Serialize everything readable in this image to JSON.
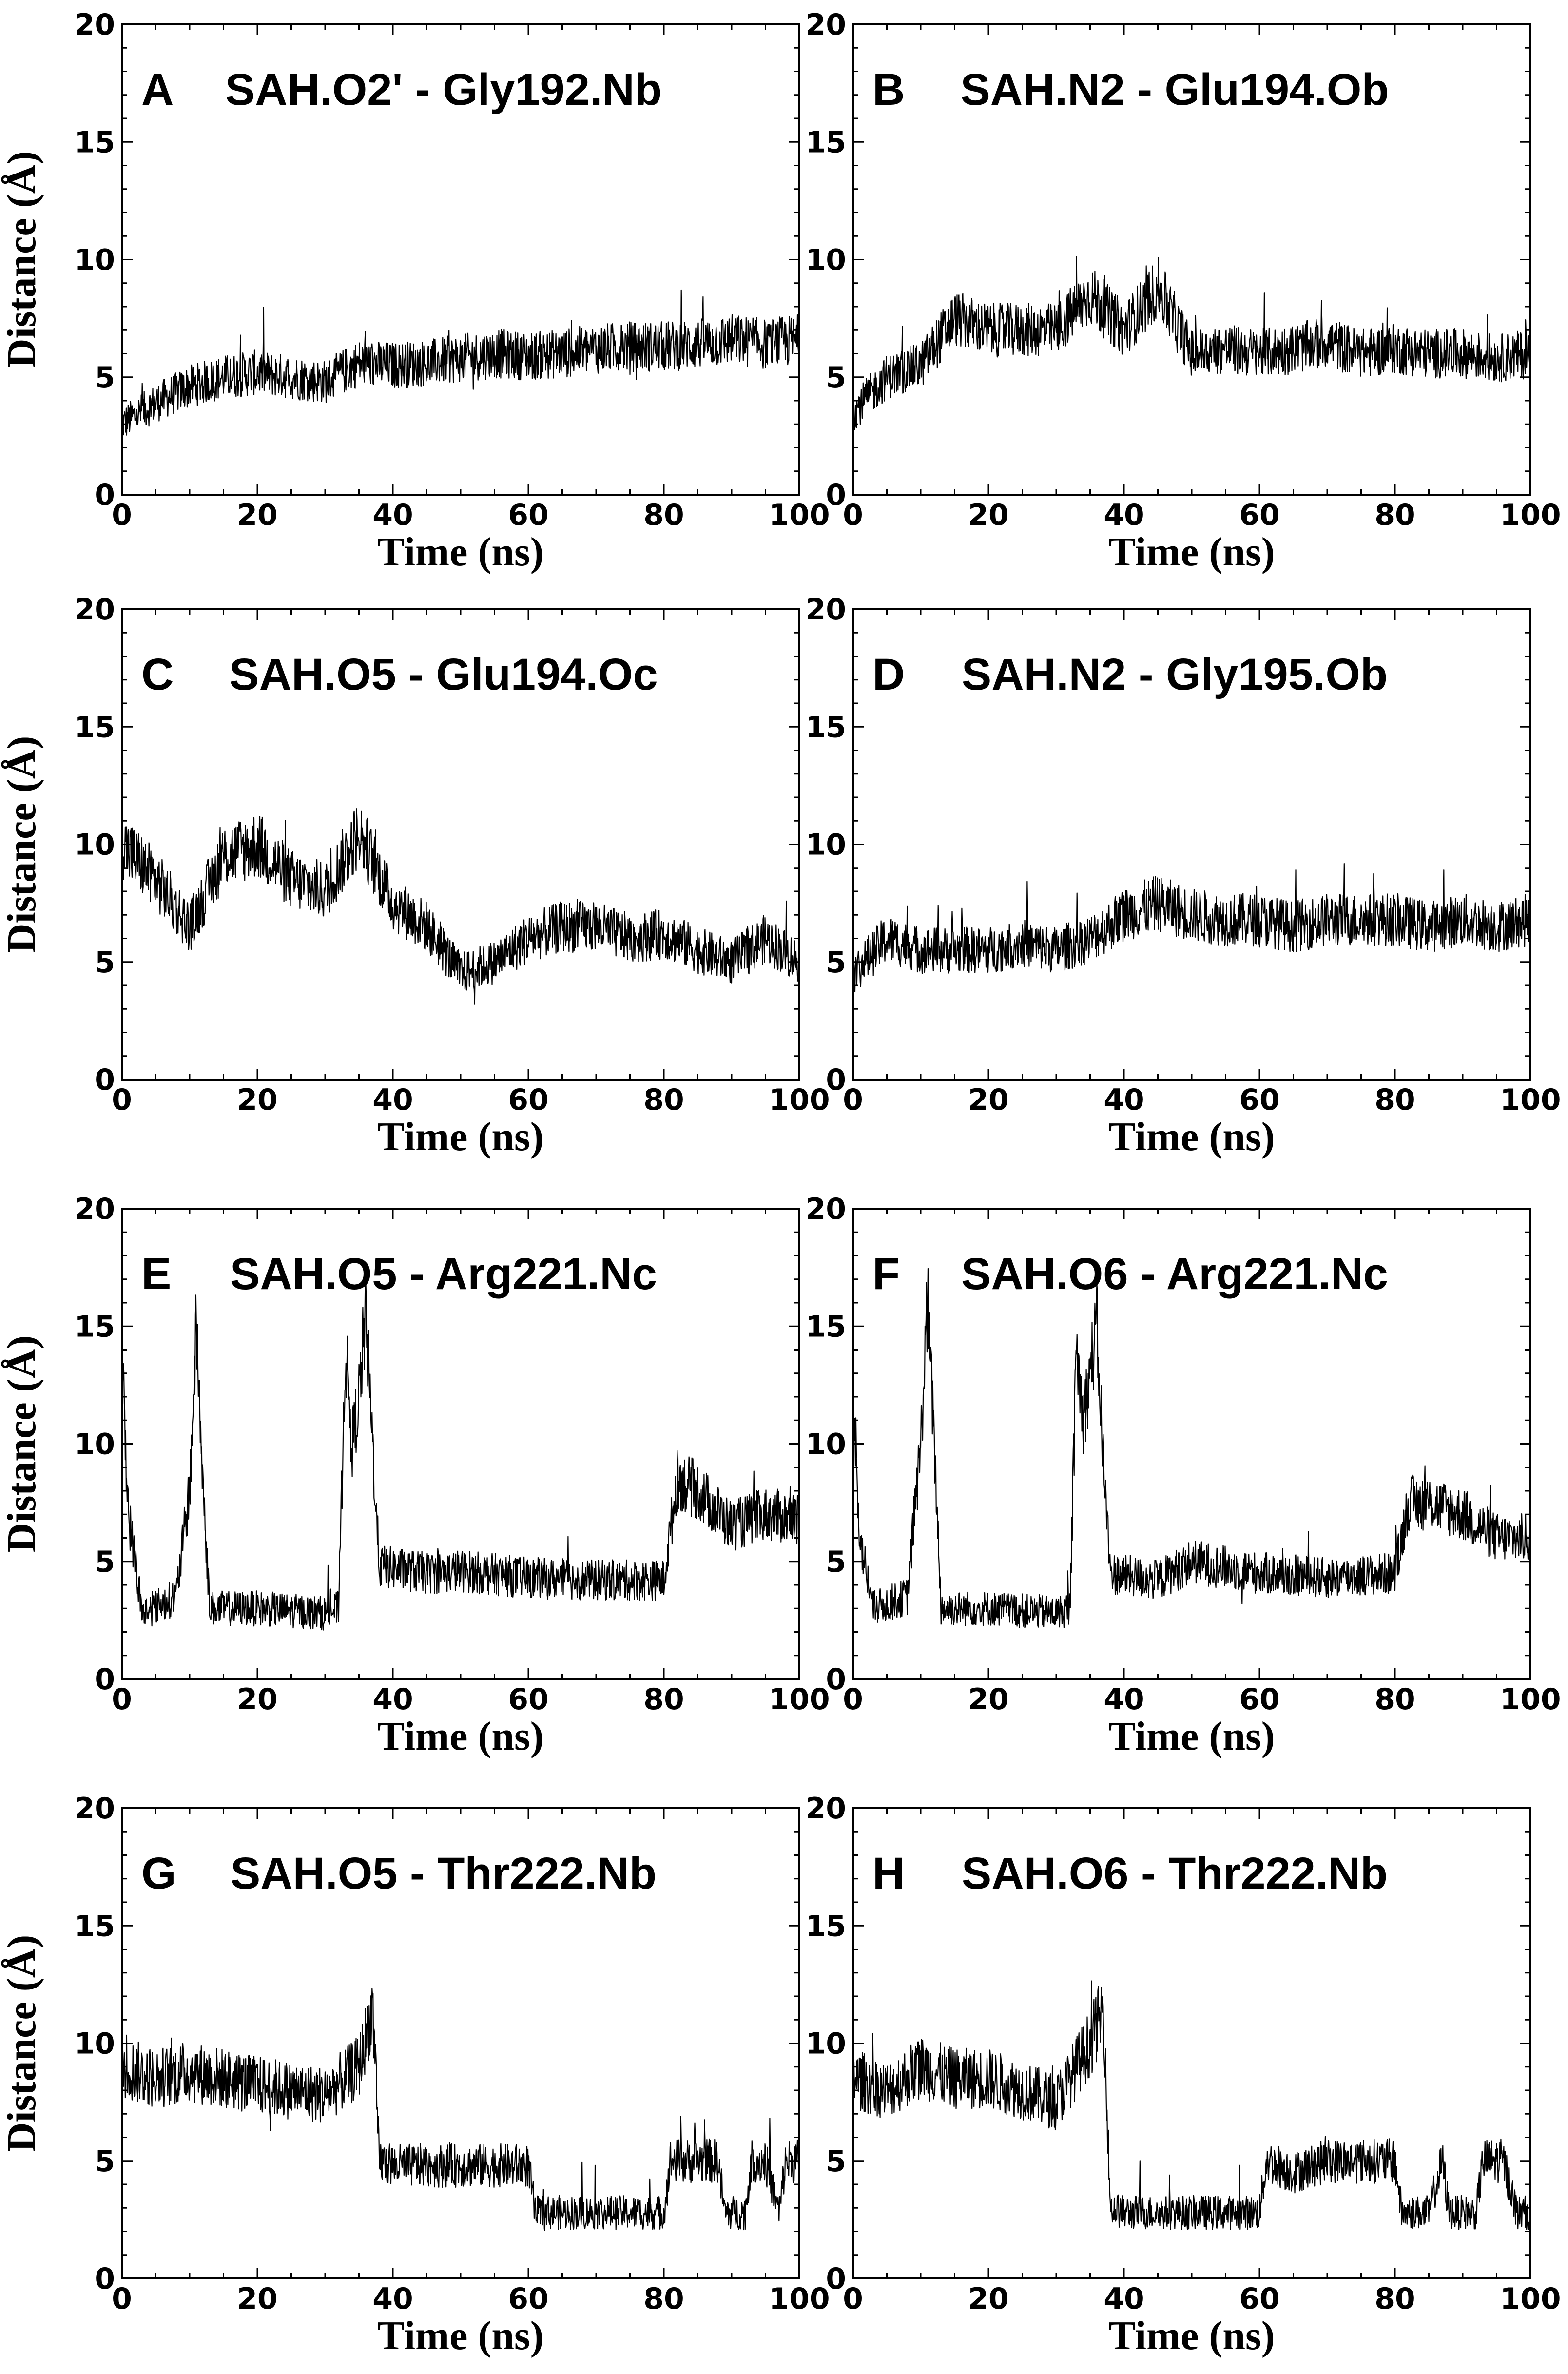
{
  "chart_data": [
    {
      "panel": "A",
      "type": "line",
      "title": "SAH.O2' - Gly192.Nb",
      "xlabel": "Time (ns)",
      "ylabel": "Distance (Å)",
      "xlim": [
        0,
        100
      ],
      "ylim": [
        0,
        20
      ],
      "xticks": [
        0,
        20,
        40,
        60,
        80,
        100
      ],
      "yticks": [
        0,
        5,
        10,
        15,
        20
      ],
      "series": [
        {
          "name": "distance",
          "x": [
            0,
            5,
            10,
            15,
            20,
            25,
            30,
            35,
            40,
            45,
            50,
            55,
            60,
            65,
            70,
            75,
            80,
            85,
            90,
            95,
            100
          ],
          "values": [
            3.0,
            3.9,
            4.6,
            5.0,
            5.2,
            5.0,
            4.8,
            5.6,
            5.5,
            5.6,
            5.8,
            6.0,
            5.9,
            6.0,
            6.2,
            6.3,
            6.3,
            6.4,
            6.6,
            6.4,
            6.6
          ]
        }
      ]
    },
    {
      "panel": "B",
      "type": "line",
      "title": "SAH.N2 - Glu194.Ob",
      "xlabel": "Time (ns)",
      "ylabel": "Distance (Å)",
      "xlim": [
        0,
        100
      ],
      "ylim": [
        0,
        20
      ],
      "xticks": [
        0,
        20,
        40,
        60,
        80,
        100
      ],
      "yticks": [
        0,
        5,
        10,
        15,
        20
      ],
      "series": [
        {
          "name": "distance",
          "x": [
            0,
            5,
            10,
            15,
            20,
            25,
            30,
            35,
            40,
            45,
            50,
            55,
            60,
            65,
            70,
            75,
            80,
            85,
            90,
            95,
            100
          ],
          "values": [
            3.5,
            5.0,
            5.5,
            7.5,
            7.0,
            7.0,
            7.0,
            8.5,
            7.0,
            8.8,
            6.0,
            6.2,
            6.0,
            6.2,
            6.5,
            6.0,
            6.2,
            6.0,
            6.0,
            5.8,
            6.0
          ]
        }
      ]
    },
    {
      "panel": "C",
      "type": "line",
      "title": "SAH.O5 - Glu194.Oc",
      "xlabel": "Time (ns)",
      "ylabel": "Distance (Å)",
      "xlim": [
        0,
        100
      ],
      "ylim": [
        0,
        20
      ],
      "xticks": [
        0,
        20,
        40,
        60,
        80,
        100
      ],
      "yticks": [
        0,
        5,
        10,
        15,
        20
      ],
      "series": [
        {
          "name": "distance",
          "x": [
            0,
            5,
            10,
            15,
            20,
            25,
            30,
            35,
            40,
            45,
            50,
            55,
            60,
            65,
            70,
            75,
            80,
            85,
            90,
            95,
            100
          ],
          "values": [
            10.0,
            8.5,
            6.5,
            9.5,
            10.0,
            8.5,
            8.0,
            10.5,
            7.5,
            6.5,
            4.5,
            5.0,
            6.0,
            6.5,
            6.5,
            6.0,
            6.2,
            5.5,
            5.0,
            6.0,
            5.0
          ]
        }
      ]
    },
    {
      "panel": "D",
      "type": "line",
      "title": "SAH.N2 - Gly195.Ob",
      "xlabel": "Time (ns)",
      "ylabel": "Distance (Å)",
      "xlim": [
        0,
        100
      ],
      "ylim": [
        0,
        20
      ],
      "xticks": [
        0,
        20,
        40,
        60,
        80,
        100
      ],
      "yticks": [
        0,
        5,
        10,
        15,
        20
      ],
      "series": [
        {
          "name": "distance",
          "x": [
            0,
            5,
            10,
            15,
            20,
            25,
            30,
            35,
            40,
            45,
            50,
            55,
            60,
            65,
            70,
            75,
            80,
            85,
            90,
            95,
            100
          ],
          "values": [
            4.5,
            6.0,
            5.5,
            5.5,
            5.5,
            5.8,
            5.5,
            6.0,
            7.0,
            7.5,
            7.0,
            6.8,
            6.8,
            6.5,
            6.8,
            6.8,
            6.8,
            6.5,
            6.8,
            6.5,
            6.8
          ]
        }
      ]
    },
    {
      "panel": "E",
      "type": "line",
      "title": "SAH.O5 - Arg221.Nc",
      "xlabel": "Time (ns)",
      "ylabel": "Distance (Å)",
      "xlim": [
        0,
        100
      ],
      "ylim": [
        0,
        20
      ],
      "xticks": [
        0,
        20,
        40,
        60,
        80,
        100
      ],
      "yticks": [
        0,
        5,
        10,
        15,
        20
      ],
      "series": [
        {
          "name": "distance",
          "x": [
            0,
            1,
            3,
            8,
            10,
            11,
            12,
            13,
            20,
            30,
            32,
            33,
            34,
            35,
            36,
            37,
            38,
            45,
            50,
            60,
            70,
            80,
            82,
            85,
            90,
            95,
            100
          ],
          "values": [
            13.5,
            7.0,
            2.8,
            3.5,
            8.0,
            15.0,
            8.0,
            3.0,
            3.0,
            2.8,
            3.0,
            14.0,
            10.0,
            12.0,
            15.5,
            10.0,
            4.8,
            4.5,
            4.6,
            4.3,
            4.2,
            4.2,
            8.5,
            8.0,
            6.5,
            7.0,
            6.8
          ]
        }
      ]
    },
    {
      "panel": "F",
      "type": "line",
      "title": "SAH.O6 - Arg221.Nc",
      "xlabel": "Time (ns)",
      "ylabel": "Distance (Å)",
      "xlim": [
        0,
        100
      ],
      "ylim": [
        0,
        20
      ],
      "xticks": [
        0,
        20,
        40,
        60,
        80,
        100
      ],
      "yticks": [
        0,
        5,
        10,
        15,
        20
      ],
      "series": [
        {
          "name": "distance",
          "x": [
            0,
            1,
            3,
            8,
            10,
            11,
            12,
            13,
            20,
            30,
            32,
            33,
            34,
            35,
            36,
            37,
            38,
            45,
            50,
            60,
            70,
            80,
            82,
            85,
            90,
            95,
            100
          ],
          "values": [
            13.0,
            6.0,
            3.0,
            3.5,
            10.0,
            16.0,
            10.0,
            3.0,
            3.0,
            2.8,
            3.0,
            14.0,
            11.0,
            13.0,
            15.0,
            9.0,
            4.5,
            4.2,
            5.0,
            4.5,
            4.3,
            4.5,
            7.5,
            7.5,
            7.0,
            6.0,
            6.0
          ]
        }
      ]
    },
    {
      "panel": "G",
      "type": "line",
      "title": "SAH.O5 - Thr222.Nb",
      "xlabel": "Time (ns)",
      "ylabel": "Distance (Å)",
      "xlim": [
        0,
        100
      ],
      "ylim": [
        0,
        20
      ],
      "xticks": [
        0,
        20,
        40,
        60,
        80,
        100
      ],
      "yticks": [
        0,
        5,
        10,
        15,
        20
      ],
      "series": [
        {
          "name": "distance",
          "x": [
            0,
            5,
            10,
            15,
            20,
            25,
            30,
            35,
            37,
            38,
            40,
            45,
            50,
            55,
            60,
            61,
            65,
            70,
            75,
            80,
            81,
            85,
            88,
            89,
            92,
            93,
            95,
            97,
            98,
            100
          ],
          "values": [
            9.0,
            8.5,
            8.8,
            8.5,
            8.2,
            8.0,
            7.8,
            9.0,
            11.5,
            5.0,
            4.8,
            4.8,
            4.8,
            4.8,
            4.8,
            2.8,
            2.8,
            2.8,
            2.8,
            2.8,
            5.0,
            5.0,
            5.0,
            2.8,
            2.8,
            5.0,
            5.0,
            2.8,
            5.0,
            5.0
          ]
        }
      ]
    },
    {
      "panel": "H",
      "type": "line",
      "title": "SAH.O6 - Thr222.Nb",
      "xlabel": "Time (ns)",
      "ylabel": "Distance (Å)",
      "xlim": [
        0,
        100
      ],
      "ylim": [
        0,
        20
      ],
      "xticks": [
        0,
        20,
        40,
        60,
        80,
        100
      ],
      "yticks": [
        0,
        5,
        10,
        15,
        20
      ],
      "series": [
        {
          "name": "distance",
          "x": [
            0,
            5,
            10,
            15,
            20,
            25,
            30,
            35,
            37,
            38,
            40,
            45,
            50,
            55,
            60,
            61,
            65,
            70,
            75,
            80,
            81,
            85,
            87,
            88,
            92,
            93,
            96,
            98,
            100
          ],
          "values": [
            8.5,
            8.0,
            9.0,
            8.5,
            8.5,
            8.0,
            7.5,
            10.0,
            11.5,
            3.0,
            2.8,
            2.8,
            2.8,
            2.8,
            2.8,
            5.0,
            4.5,
            5.0,
            5.0,
            5.0,
            2.8,
            2.8,
            5.0,
            2.8,
            2.8,
            5.0,
            5.0,
            2.8,
            2.8
          ]
        }
      ]
    }
  ]
}
